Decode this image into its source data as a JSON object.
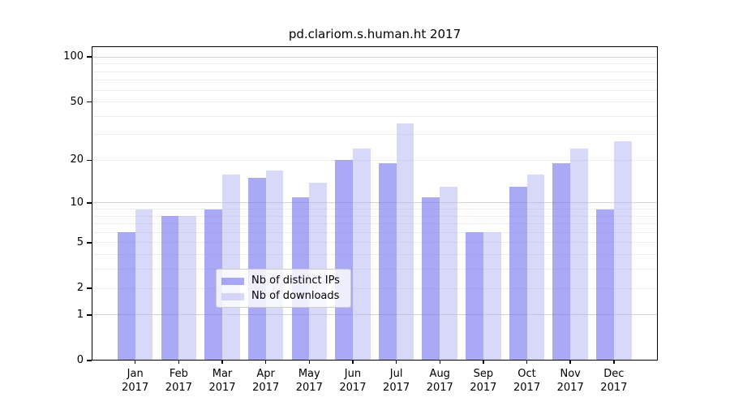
{
  "chart_data": {
    "type": "bar",
    "title": "pd.clariom.s.human.ht 2017",
    "categories": [
      "Jan 2017",
      "Feb 2017",
      "Mar 2017",
      "Apr 2017",
      "May 2017",
      "Jun 2017",
      "Jul 2017",
      "Aug 2017",
      "Sep 2017",
      "Oct 2017",
      "Nov 2017",
      "Dec 2017"
    ],
    "series": [
      {
        "name": "Nb of distinct IPs",
        "values": [
          6,
          8,
          9,
          15,
          11,
          20,
          19,
          11,
          6,
          13,
          19,
          9
        ],
        "color": "#a7a7f2",
        "fill": "rgba(112,112,238,0.6)"
      },
      {
        "name": "Nb of downloads",
        "values": [
          9,
          8,
          16,
          17,
          14,
          24,
          36,
          13,
          6,
          16,
          24,
          27
        ],
        "color": "#d9d9f7",
        "fill": "rgba(178,178,242,0.5)"
      }
    ],
    "yscale": "log1p",
    "yticks": [
      0,
      1,
      2,
      5,
      10,
      20,
      50,
      100
    ],
    "ylim": [
      0,
      118
    ],
    "xlabel": "",
    "ylabel": "",
    "grid": true,
    "legend_position": "lower center"
  },
  "colors": {
    "background": "#ffffff",
    "axis": "#000000",
    "grid_major": "#d3d3d3",
    "grid_minor": "#ededed",
    "series_dark": "#a7a7f2",
    "series_light": "#d9d9f7"
  }
}
